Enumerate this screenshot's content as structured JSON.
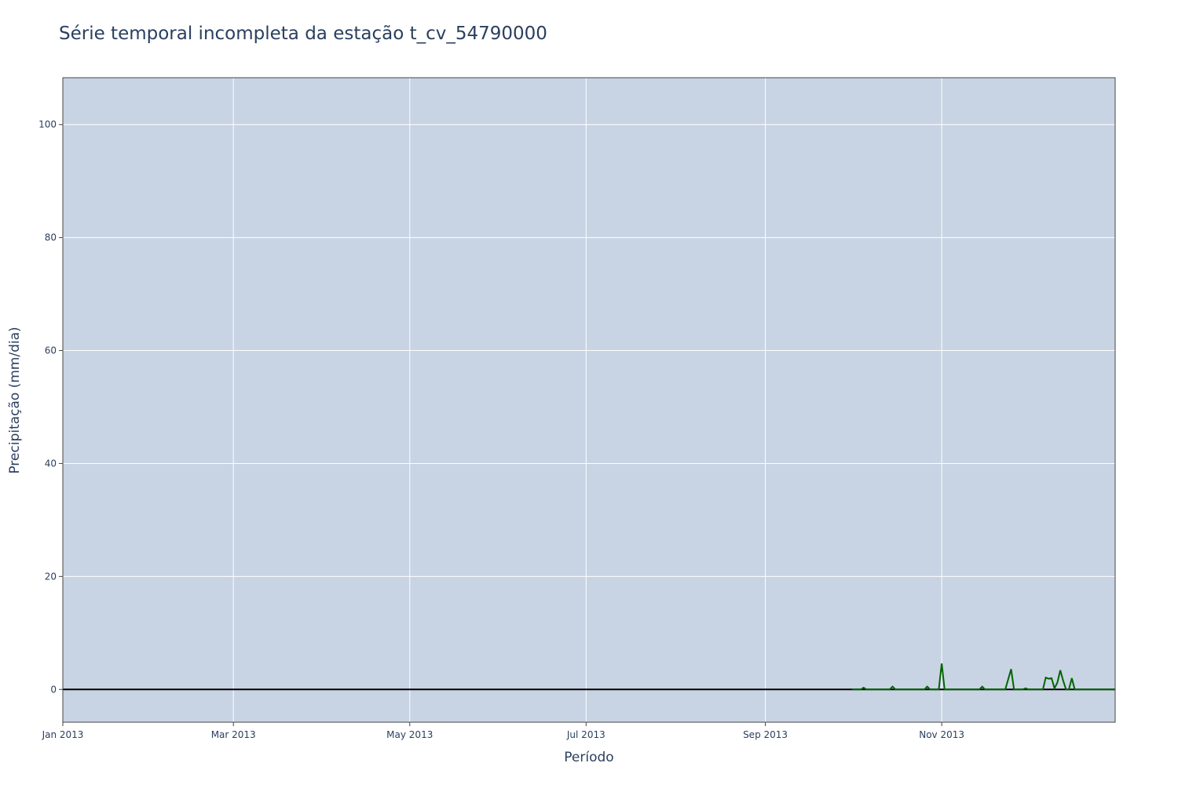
{
  "chart_data": {
    "type": "line",
    "title": "Série temporal incompleta da estação t_cv_54790000",
    "xlabel": "Período",
    "ylabel": "Precipitação (mm/dia)",
    "xlim": [
      "2013-01-01",
      "2013-12-31"
    ],
    "ylim": [
      -5.8,
      108.3
    ],
    "x_ticks": [
      {
        "date": "2013-01-01",
        "label": "Jan 2013"
      },
      {
        "date": "2013-03-01",
        "label": "Mar 2013"
      },
      {
        "date": "2013-05-01",
        "label": "May 2013"
      },
      {
        "date": "2013-07-01",
        "label": "Jul 2013"
      },
      {
        "date": "2013-09-01",
        "label": "Sep 2013"
      },
      {
        "date": "2013-11-01",
        "label": "Nov 2013"
      }
    ],
    "y_ticks": [
      0,
      20,
      40,
      60,
      80,
      100
    ],
    "grid": true,
    "zero_line": true,
    "colors": {
      "plot_background": "#c8d4e3",
      "grid": "#ffffff",
      "series": "#006400",
      "text": "#2a3f5f"
    },
    "series": [
      {
        "x": [
          "2013-10-01",
          "2013-10-04",
          "2013-10-05",
          "2013-10-06",
          "2013-10-14",
          "2013-10-15",
          "2013-10-16",
          "2013-10-26",
          "2013-10-27",
          "2013-10-28",
          "2013-10-31",
          "2013-11-01",
          "2013-11-02",
          "2013-11-14",
          "2013-11-15",
          "2013-11-16",
          "2013-11-23",
          "2013-11-25",
          "2013-11-26",
          "2013-11-29",
          "2013-11-30",
          "2013-12-01",
          "2013-12-06",
          "2013-12-07",
          "2013-12-08",
          "2013-12-09",
          "2013-12-10",
          "2013-12-11",
          "2013-12-12",
          "2013-12-13",
          "2013-12-14",
          "2013-12-15",
          "2013-12-16",
          "2013-12-17",
          "2013-12-31"
        ],
        "y": [
          0,
          0,
          0.3,
          0,
          0,
          0.5,
          0,
          0,
          0.5,
          0,
          0,
          4.6,
          0,
          0,
          0.5,
          0,
          0,
          3.6,
          0,
          0,
          0.2,
          0,
          0,
          2.1,
          1.9,
          2.0,
          0.2,
          1.2,
          3.4,
          1.6,
          0,
          0,
          2.0,
          0,
          0
        ]
      }
    ]
  }
}
